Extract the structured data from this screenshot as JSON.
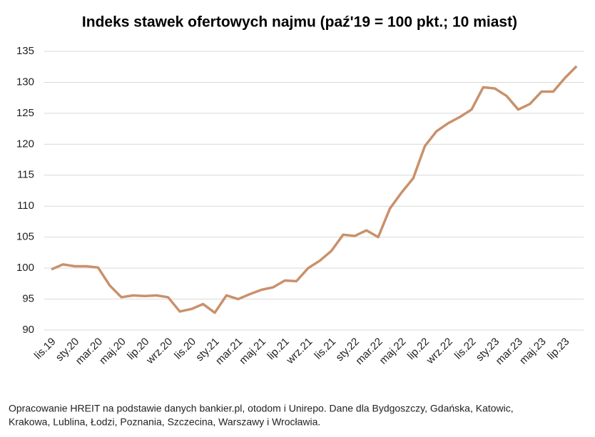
{
  "chart_data": {
    "type": "line",
    "title": "Indeks stawek ofertowych najmu (paź'19 = 100 pkt.; 10 miast)",
    "categories": [
      "lis.19",
      null,
      "sty.20",
      null,
      "mar.20",
      null,
      "maj.20",
      null,
      "lip.20",
      null,
      "wrz.20",
      null,
      "lis.20",
      null,
      "sty.21",
      null,
      "mar.21",
      null,
      "maj.21",
      null,
      "lip.21",
      null,
      "wrz.21",
      null,
      "lis.21",
      null,
      "sty.22",
      null,
      "mar.22",
      null,
      "maj.22",
      null,
      "lip.22",
      null,
      "wrz.22",
      null,
      "lis.22",
      null,
      "sty.23",
      null,
      "mar.23",
      null,
      "maj.23",
      null,
      "lip.23",
      null
    ],
    "series": [
      {
        "name": "Indeks",
        "color": "#c9916b",
        "values": [
          99.8,
          100.6,
          100.3,
          100.3,
          100.1,
          97.2,
          95.3,
          95.6,
          95.5,
          95.6,
          95.3,
          93.0,
          93.4,
          94.2,
          92.8,
          95.6,
          95.0,
          95.8,
          96.5,
          96.9,
          98.0,
          97.9,
          100.0,
          101.2,
          102.8,
          105.4,
          105.2,
          106.1,
          105.0,
          109.6,
          112.2,
          114.5,
          119.7,
          122.1,
          123.4,
          124.4,
          125.6,
          129.2,
          129.0,
          127.8,
          125.6,
          126.5,
          128.5,
          128.5,
          130.7,
          132.6
        ]
      }
    ],
    "ylim": [
      90,
      135
    ],
    "yticks": [
      90,
      95,
      100,
      105,
      110,
      115,
      120,
      125,
      130,
      135
    ],
    "grid": true,
    "note": [
      "Opracowanie HREIT na podstawie danych bankier.pl, otodom i Unirepo. Dane dla Bydgoszczy, Gdańska, Katowic,",
      "Krakowa, Lublina, Łodzi, Poznania, Szczecina, Warszawy i Wrocławia."
    ]
  }
}
